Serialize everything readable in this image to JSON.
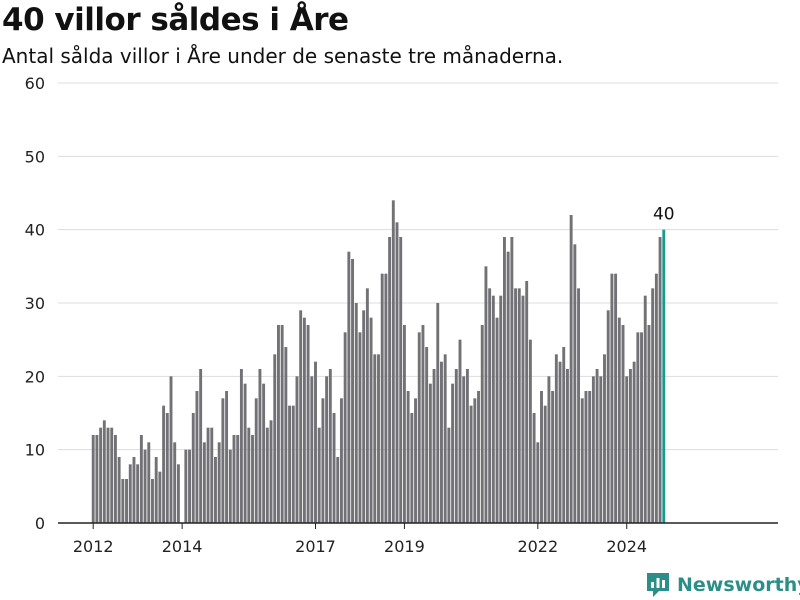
{
  "header": {
    "title": "40 villor såldes i Åre",
    "subtitle": "Antal sålda villor i Åre under de senaste tre månaderna."
  },
  "brand": {
    "name": "Newsworthy",
    "icon": "newsworthy-logo-icon",
    "color": "#2b8f87"
  },
  "colors": {
    "bar": "#727176",
    "highlight": "#1a9a8f"
  },
  "chart_data": {
    "type": "bar",
    "start": [
      2012,
      1
    ],
    "frequency": "monthly",
    "values": [
      12,
      12,
      13,
      14,
      13,
      13,
      12,
      9,
      6,
      6,
      8,
      9,
      8,
      12,
      10,
      11,
      6,
      9,
      7,
      16,
      15,
      20,
      11,
      8,
      0,
      10,
      10,
      15,
      18,
      21,
      11,
      13,
      13,
      9,
      11,
      17,
      18,
      10,
      12,
      12,
      21,
      19,
      13,
      12,
      17,
      21,
      19,
      13,
      14,
      23,
      27,
      27,
      24,
      16,
      16,
      20,
      29,
      28,
      27,
      20,
      22,
      13,
      17,
      20,
      21,
      15,
      9,
      17,
      26,
      37,
      36,
      30,
      26,
      29,
      32,
      28,
      23,
      23,
      34,
      34,
      39,
      44,
      41,
      39,
      27,
      18,
      15,
      17,
      26,
      27,
      24,
      19,
      21,
      30,
      22,
      23,
      13,
      19,
      21,
      25,
      20,
      21,
      16,
      17,
      18,
      27,
      35,
      32,
      31,
      28,
      31,
      39,
      37,
      39,
      32,
      32,
      31,
      33,
      25,
      15,
      11,
      18,
      16,
      20,
      18,
      23,
      22,
      24,
      21,
      42,
      38,
      32,
      17,
      18,
      18,
      20,
      21,
      20,
      23,
      29,
      34,
      34,
      28,
      27,
      20,
      21,
      22,
      26,
      26,
      31,
      27,
      32,
      34,
      39,
      40
    ],
    "last_label": "40",
    "ylim": [
      0,
      60
    ],
    "yticks": [
      0,
      10,
      20,
      30,
      40,
      50,
      60
    ],
    "xticks": [
      "2012",
      "2014",
      "2017",
      "2019",
      "2022",
      "2024"
    ],
    "grid": true
  }
}
